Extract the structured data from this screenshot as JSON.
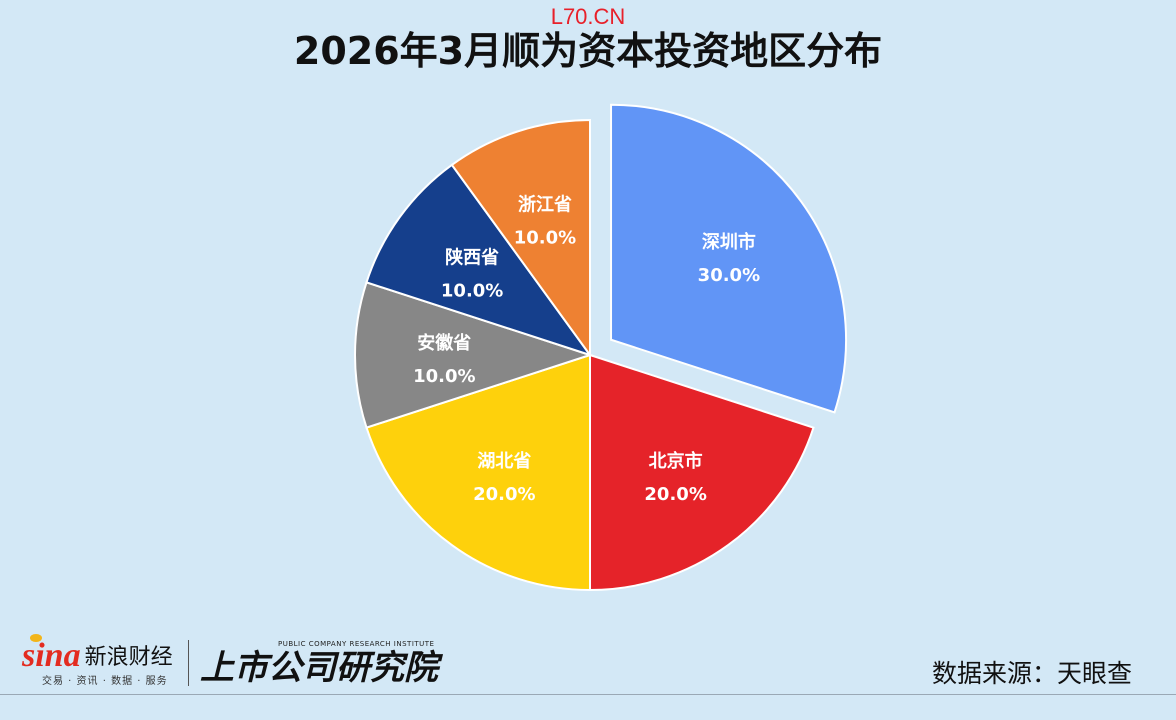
{
  "watermark": "L70.CN",
  "title": "2026年3月顺为资本投资地区分布",
  "source": "数据来源：天眼查",
  "logo": {
    "sina_word": "sina",
    "sina_name": "新浪财经",
    "sina_sub": "交易 · 资讯 · 数据 · 服务",
    "institute_en": "PUBLIC COMPANY RESEARCH INSTITUTE",
    "institute_cn": "上市公司研究院"
  },
  "chart_data": {
    "type": "pie",
    "title": "2026年3月顺为资本投资地区分布",
    "start": "top, clockwise",
    "exploded": "深圳市",
    "slices": [
      {
        "label": "深圳市",
        "value": 30.0,
        "pct": "30.0%",
        "color": "#6195f6"
      },
      {
        "label": "北京市",
        "value": 20.0,
        "pct": "20.0%",
        "color": "#e52329"
      },
      {
        "label": "湖北省",
        "value": 20.0,
        "pct": "20.0%",
        "color": "#fed10c"
      },
      {
        "label": "安徽省",
        "value": 10.0,
        "pct": "10.0%",
        "color": "#878787"
      },
      {
        "label": "陕西省",
        "value": 10.0,
        "pct": "10.0%",
        "color": "#153f8c"
      },
      {
        "label": "浙江省",
        "value": 10.0,
        "pct": "10.0%",
        "color": "#ee8132"
      }
    ]
  }
}
